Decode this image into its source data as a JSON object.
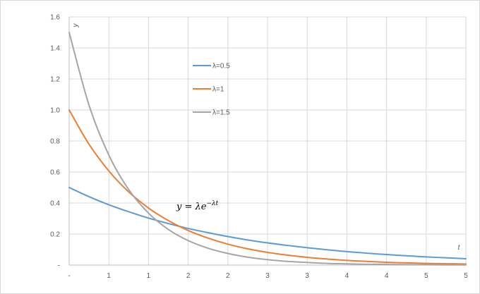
{
  "chart_data": {
    "type": "line",
    "title": "",
    "xlabel": "t",
    "ylabel": "y",
    "xlim": [
      0,
      5
    ],
    "ylim": [
      0,
      1.6
    ],
    "x_ticks": [
      {
        "value": 0,
        "label": "-"
      },
      {
        "value": 0.5,
        "label": "1"
      },
      {
        "value": 1.0,
        "label": "1"
      },
      {
        "value": 1.5,
        "label": "2"
      },
      {
        "value": 2.0,
        "label": "2"
      },
      {
        "value": 2.5,
        "label": "3"
      },
      {
        "value": 3.0,
        "label": "3"
      },
      {
        "value": 3.5,
        "label": "4"
      },
      {
        "value": 4.0,
        "label": "4"
      },
      {
        "value": 4.5,
        "label": "5"
      },
      {
        "value": 5.0,
        "label": "5"
      }
    ],
    "y_ticks": [
      {
        "value": 0,
        "label": "-"
      },
      {
        "value": 0.2,
        "label": "0.2"
      },
      {
        "value": 0.4,
        "label": "0.4"
      },
      {
        "value": 0.6,
        "label": "0.6"
      },
      {
        "value": 0.8,
        "label": "0.8"
      },
      {
        "value": 1.0,
        "label": "1.0"
      },
      {
        "value": 1.2,
        "label": "1.2"
      },
      {
        "value": 1.4,
        "label": "1.4"
      },
      {
        "value": 1.6,
        "label": "1.6"
      }
    ],
    "grid": true,
    "legend_position": "upper-center",
    "annotation": {
      "text_main": "y = λe",
      "text_exponent": "−λt",
      "x": 1.35,
      "y": 0.38
    },
    "x": [
      0,
      0.25,
      0.5,
      0.75,
      1.0,
      1.25,
      1.5,
      1.75,
      2.0,
      2.25,
      2.5,
      2.75,
      3.0,
      3.25,
      3.5,
      3.75,
      4.0,
      4.25,
      4.5,
      4.75,
      5.0
    ],
    "series": [
      {
        "name": "λ=0.5",
        "color": "#5b9bd5",
        "values": [
          0.5,
          0.441,
          0.389,
          0.344,
          0.303,
          0.268,
          0.236,
          0.209,
          0.184,
          0.162,
          0.143,
          0.127,
          0.112,
          0.099,
          0.087,
          0.077,
          0.068,
          0.06,
          0.053,
          0.047,
          0.041
        ]
      },
      {
        "name": "λ=1",
        "color": "#ed7d31",
        "values": [
          1.0,
          0.779,
          0.607,
          0.472,
          0.368,
          0.287,
          0.223,
          0.174,
          0.135,
          0.105,
          0.082,
          0.064,
          0.05,
          0.039,
          0.03,
          0.024,
          0.018,
          0.014,
          0.011,
          0.009,
          0.007
        ]
      },
      {
        "name": "λ=1.5",
        "color": "#a5a5a5",
        "values": [
          1.5,
          1.031,
          0.709,
          0.487,
          0.335,
          0.23,
          0.158,
          0.109,
          0.075,
          0.051,
          0.035,
          0.024,
          0.017,
          0.011,
          0.008,
          0.005,
          0.004,
          0.003,
          0.002,
          0.001,
          0.001
        ]
      }
    ]
  }
}
